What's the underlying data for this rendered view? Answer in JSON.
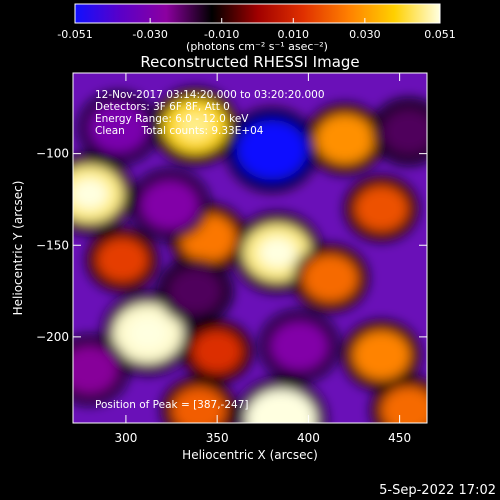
{
  "colorbar": {
    "ticks": [
      "-0.051",
      "-0.030",
      "-0.010",
      "0.010",
      "0.030",
      "0.051"
    ],
    "tick_values": [
      -0.051,
      -0.03,
      -0.01,
      0.01,
      0.03,
      0.051
    ],
    "range": [
      -0.051,
      0.051
    ],
    "units": "(photons cm⁻² s⁻¹ asec⁻²)",
    "colormap": [
      "#1010ff",
      "#5a00c8",
      "#8c00a0",
      "#000000",
      "#a00000",
      "#e03000",
      "#ff8000",
      "#ffd000",
      "#ffffe0"
    ]
  },
  "chart_data": {
    "type": "heatmap",
    "title": "Reconstructed RHESSI Image",
    "xlabel": "Heliocentric X (arcsec)",
    "ylabel": "Heliocentric Y (arcsec)",
    "xlim": [
      271,
      465
    ],
    "ylim": [
      -247,
      -56
    ],
    "xticks": [
      300,
      350,
      400,
      450
    ],
    "yticks": [
      -100,
      -150,
      -200
    ],
    "xtick_labels": [
      "300",
      "350",
      "400",
      "450"
    ],
    "ytick_labels": [
      "−100",
      "−150",
      "−200"
    ],
    "annotations": [
      "12-Nov-2017 03:14:20.000 to 03:20:20.000",
      "Detectors: 3F 6F 8F, Att 0",
      "Energy Range: 6.0 - 12.0 keV",
      "Clean     Total counts: 9.33E+04"
    ],
    "peak_label": "Position of Peak = [387,-247]",
    "peak_position": [
      387,
      -247
    ],
    "sources": [
      {
        "x": 280,
        "y": -122,
        "value": 0.046
      },
      {
        "x": 338,
        "y": -85,
        "value": 0.04
      },
      {
        "x": 298,
        "y": -158,
        "value": 0.015
      },
      {
        "x": 345,
        "y": -146,
        "value": 0.024
      },
      {
        "x": 383,
        "y": -154,
        "value": 0.046
      },
      {
        "x": 412,
        "y": -168,
        "value": 0.022
      },
      {
        "x": 312,
        "y": -198,
        "value": 0.05
      },
      {
        "x": 420,
        "y": -92,
        "value": 0.028
      },
      {
        "x": 440,
        "y": -130,
        "value": 0.018
      },
      {
        "x": 350,
        "y": -208,
        "value": 0.012
      },
      {
        "x": 440,
        "y": -210,
        "value": 0.026
      },
      {
        "x": 385,
        "y": -245,
        "value": 0.051
      },
      {
        "x": 340,
        "y": -240,
        "value": 0.02
      },
      {
        "x": 455,
        "y": -240,
        "value": 0.022
      },
      {
        "x": 380,
        "y": -98,
        "value": -0.051
      },
      {
        "x": 296,
        "y": -86,
        "value": -0.03
      },
      {
        "x": 324,
        "y": -128,
        "value": -0.028
      },
      {
        "x": 338,
        "y": -175,
        "value": -0.02
      },
      {
        "x": 280,
        "y": -218,
        "value": -0.025
      },
      {
        "x": 395,
        "y": -205,
        "value": -0.028
      },
      {
        "x": 455,
        "y": -88,
        "value": -0.02
      }
    ]
  },
  "footer": {
    "timestamp": "5-Sep-2022 17:02"
  }
}
